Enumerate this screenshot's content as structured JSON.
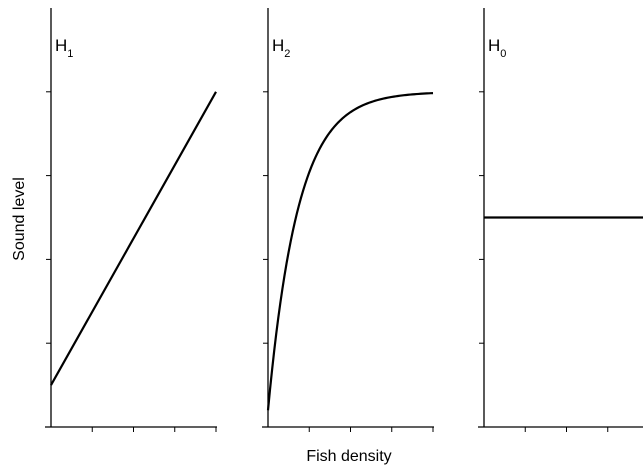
{
  "chart_data": [
    {
      "type": "line",
      "title": "H1",
      "title_main": "H",
      "title_sub": "1",
      "series": [
        {
          "x": [
            0,
            10
          ],
          "y": [
            1,
            8
          ]
        }
      ],
      "xlim": [
        0,
        10
      ],
      "ylim": [
        0,
        10
      ],
      "shape": "linear"
    },
    {
      "type": "line",
      "title": "H2",
      "title_main": "H",
      "title_sub": "2",
      "series": [
        {
          "x": [
            0,
            10
          ],
          "y": [
            0.4,
            8
          ],
          "rate": 0.55
        }
      ],
      "xlim": [
        0,
        10
      ],
      "ylim": [
        0,
        10
      ],
      "shape": "saturating"
    },
    {
      "type": "line",
      "title": "H0",
      "title_main": "H",
      "title_sub": "0",
      "series": [
        {
          "x": [
            0,
            10
          ],
          "y": [
            5,
            5
          ]
        }
      ],
      "xlim": [
        0,
        10
      ],
      "ylim": [
        0,
        10
      ],
      "shape": "constant"
    }
  ],
  "axes": {
    "xlabel": "Fish density",
    "ylabel": "Sound level"
  }
}
